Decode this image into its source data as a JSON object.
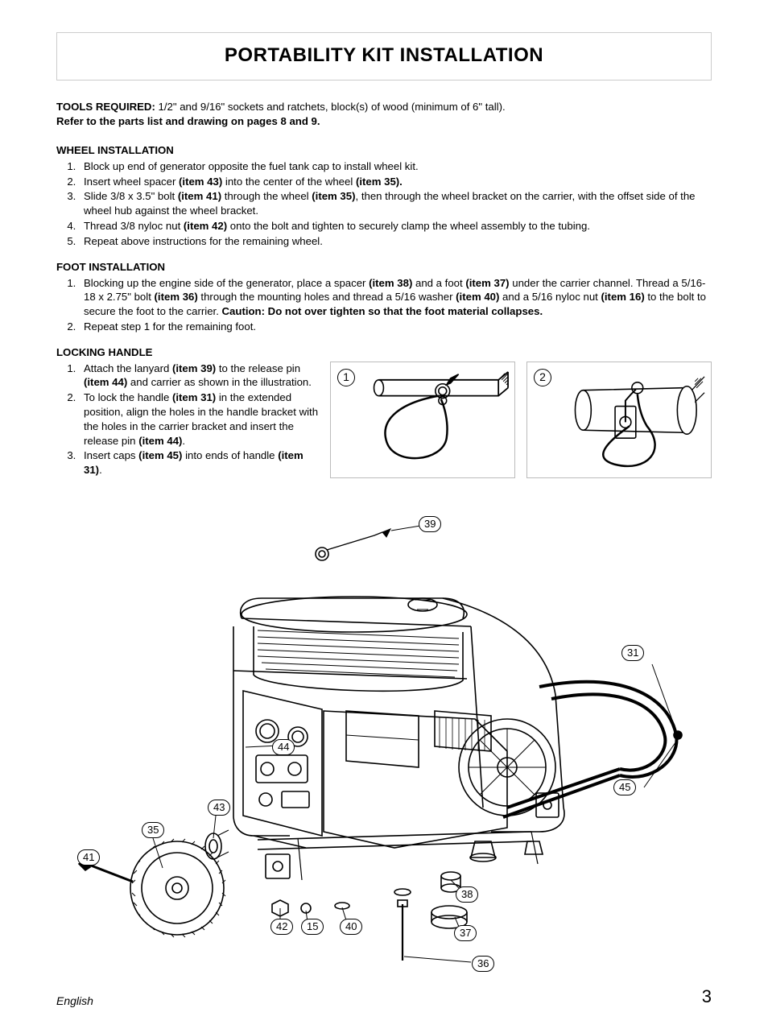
{
  "title": "PORTABILITY KIT INSTALLATION",
  "intro": {
    "tools_label": "TOOLS  REQUIRED:",
    "tools_text": "  1/2\" and 9/16\" sockets and ratchets, block(s) of wood (minimum of 6\" tall).",
    "refer": "Refer to the parts list and drawing on pages 8 and 9."
  },
  "sections": {
    "wheel": {
      "heading": "WHEEL INSTALLATION",
      "steps": [
        "Block up end of generator opposite the fuel tank cap to install wheel kit.",
        "Insert wheel spacer <b>(item 43)</b> into the center of the wheel <b>(item 35).</b>",
        "Slide 3/8 x 3.5\" bolt <b>(item 41)</b> through the wheel <b>(item 35)</b>, then through the wheel bracket on the carrier, with the offset side of the wheel hub against the wheel bracket.",
        "Thread 3/8 nyloc nut <b>(item 42)</b> onto the bolt and tighten to securely clamp the wheel assembly to the tubing.",
        "Repeat above instructions for the remaining wheel."
      ]
    },
    "foot": {
      "heading": "FOOT INSTALLATION",
      "steps": [
        "Blocking up the engine side of the generator, place a spacer <b>(item 38)</b> and a  foot <b>(item 37)</b> under the carrier channel.  Thread a 5/16-18  x 2.75\" bolt <b>(item 36)</b> through the mounting holes and thread a 5/16 washer <b>(item 40)</b> and a 5/16 nyloc nut <b>(item 16)</b> to the bolt to secure the foot to the carrier.  <b>Caution: Do not over tighten so that the foot material collapses.</b>",
        "Repeat step 1 for the remaining foot."
      ]
    },
    "locking": {
      "heading": "LOCKING HANDLE",
      "steps": [
        "Attach the lanyard <b>(item 39)</b> to the release pin <b>(item 44)</b> and carrier as shown in the illustration.",
        "To lock the handle <b>(item 31)</b> in the extended position, align the holes in the handle bracket with the holes in the carrier bracket and insert the release pin <b>(item 44)</b>.",
        "Insert caps <b>(item 45)</b> into ends of handle <b>(item 31)</b>."
      ]
    }
  },
  "figures": {
    "small1": {
      "num": "1"
    },
    "small2": {
      "num": "2"
    }
  },
  "callouts": {
    "c39": "39",
    "c31": "31",
    "c44": "44",
    "c45": "45",
    "c43": "43",
    "c35": "35",
    "c41": "41",
    "c42": "42",
    "c15": "15",
    "c40": "40",
    "c38": "38",
    "c37": "37",
    "c36": "36"
  },
  "footer": {
    "lang": "English",
    "page": "3"
  },
  "style": {
    "stroke": "#000000",
    "stroke_width": 1.6,
    "thin_stroke": 1.0,
    "bg": "#ffffff"
  }
}
